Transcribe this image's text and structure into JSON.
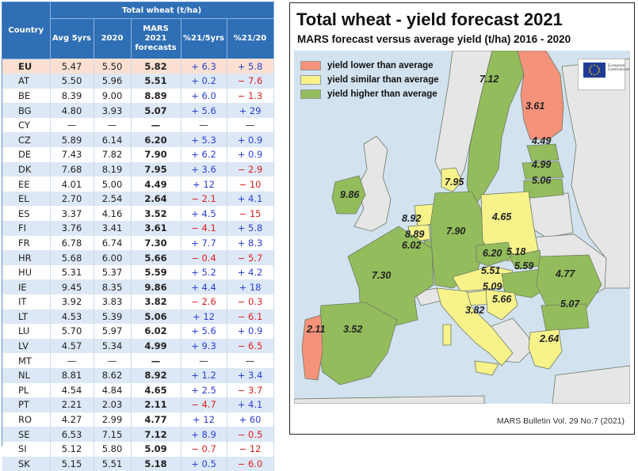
{
  "table": {
    "header_country": "Country",
    "header_group": "Total wheat (t/ha)",
    "col_avg": "Avg 5yrs",
    "col_2020": "2020",
    "col_forecast_l1": "MARS",
    "col_forecast_l2": "2021",
    "col_forecast_l3": "forecasts",
    "col_pct_avg": "%21/5yrs",
    "col_pct_2020": "%21/20",
    "rows": [
      {
        "country": "EU",
        "avg": "5.47",
        "y2020": "5.50",
        "forecast": "5.82",
        "pct_avg": "+ 6.3",
        "pct_2020": "+ 5.8"
      },
      {
        "country": "AT",
        "avg": "5.50",
        "y2020": "5.96",
        "forecast": "5.51",
        "pct_avg": "+ 0.2",
        "pct_2020": "− 7.6"
      },
      {
        "country": "BE",
        "avg": "8.39",
        "y2020": "9.00",
        "forecast": "8.89",
        "pct_avg": "+ 6.0",
        "pct_2020": "− 1.3"
      },
      {
        "country": "BG",
        "avg": "4.80",
        "y2020": "3.93",
        "forecast": "5.07",
        "pct_avg": "+ 5.6",
        "pct_2020": "+ 29"
      },
      {
        "country": "CY",
        "avg": "—",
        "y2020": "—",
        "forecast": "—",
        "pct_avg": "—",
        "pct_2020": "—"
      },
      {
        "country": "CZ",
        "avg": "5.89",
        "y2020": "6.14",
        "forecast": "6.20",
        "pct_avg": "+ 5.3",
        "pct_2020": "+ 0.9"
      },
      {
        "country": "DE",
        "avg": "7.43",
        "y2020": "7.82",
        "forecast": "7.90",
        "pct_avg": "+ 6.2",
        "pct_2020": "+ 0.9"
      },
      {
        "country": "DK",
        "avg": "7.68",
        "y2020": "8.19",
        "forecast": "7.95",
        "pct_avg": "+ 3.6",
        "pct_2020": "− 2.9"
      },
      {
        "country": "EE",
        "avg": "4.01",
        "y2020": "5.00",
        "forecast": "4.49",
        "pct_avg": "+ 12",
        "pct_2020": "− 10"
      },
      {
        "country": "EL",
        "avg": "2.70",
        "y2020": "2.54",
        "forecast": "2.64",
        "pct_avg": "− 2.1",
        "pct_2020": "+ 4.1"
      },
      {
        "country": "ES",
        "avg": "3.37",
        "y2020": "4.16",
        "forecast": "3.52",
        "pct_avg": "+ 4.5",
        "pct_2020": "− 15"
      },
      {
        "country": "FI",
        "avg": "3.76",
        "y2020": "3.41",
        "forecast": "3.61",
        "pct_avg": "− 4.1",
        "pct_2020": "+ 5.8"
      },
      {
        "country": "FR",
        "avg": "6.78",
        "y2020": "6.74",
        "forecast": "7.30",
        "pct_avg": "+ 7.7",
        "pct_2020": "+ 8.3"
      },
      {
        "country": "HR",
        "avg": "5.68",
        "y2020": "6.00",
        "forecast": "5.66",
        "pct_avg": "− 0.4",
        "pct_2020": "− 5.7"
      },
      {
        "country": "HU",
        "avg": "5.31",
        "y2020": "5.37",
        "forecast": "5.59",
        "pct_avg": "+ 5.2",
        "pct_2020": "+ 4.2"
      },
      {
        "country": "IE",
        "avg": "9.45",
        "y2020": "8.35",
        "forecast": "9.86",
        "pct_avg": "+ 4.4",
        "pct_2020": "+ 18"
      },
      {
        "country": "IT",
        "avg": "3.92",
        "y2020": "3.83",
        "forecast": "3.82",
        "pct_avg": "− 2.6",
        "pct_2020": "− 0.3"
      },
      {
        "country": "LT",
        "avg": "4.53",
        "y2020": "5.39",
        "forecast": "5.06",
        "pct_avg": "+ 12",
        "pct_2020": "− 6.1"
      },
      {
        "country": "LU",
        "avg": "5.70",
        "y2020": "5.97",
        "forecast": "6.02",
        "pct_avg": "+ 5.6",
        "pct_2020": "+ 0.9"
      },
      {
        "country": "LV",
        "avg": "4.57",
        "y2020": "5.34",
        "forecast": "4.99",
        "pct_avg": "+ 9.3",
        "pct_2020": "− 6.5"
      },
      {
        "country": "MT",
        "avg": "—",
        "y2020": "—",
        "forecast": "—",
        "pct_avg": "—",
        "pct_2020": "—"
      },
      {
        "country": "NL",
        "avg": "8.81",
        "y2020": "8.62",
        "forecast": "8.92",
        "pct_avg": "+ 1.2",
        "pct_2020": "+ 3.4"
      },
      {
        "country": "PL",
        "avg": "4.54",
        "y2020": "4.84",
        "forecast": "4.65",
        "pct_avg": "+ 2.5",
        "pct_2020": "− 3.7"
      },
      {
        "country": "PT",
        "avg": "2.21",
        "y2020": "2.03",
        "forecast": "2.11",
        "pct_avg": "− 4.7",
        "pct_2020": "+ 4.1"
      },
      {
        "country": "RO",
        "avg": "4.27",
        "y2020": "2.99",
        "forecast": "4.77",
        "pct_avg": "+ 12",
        "pct_2020": "+ 60"
      },
      {
        "country": "SE",
        "avg": "6.53",
        "y2020": "7.15",
        "forecast": "7.12",
        "pct_avg": "+ 8.9",
        "pct_2020": "− 0.5"
      },
      {
        "country": "SI",
        "avg": "5.12",
        "y2020": "5.80",
        "forecast": "5.09",
        "pct_avg": "− 0.7",
        "pct_2020": "− 12"
      },
      {
        "country": "SK",
        "avg": "5.15",
        "y2020": "5.51",
        "forecast": "5.18",
        "pct_avg": "+ 0.5",
        "pct_2020": "− 6.0"
      }
    ]
  },
  "map": {
    "title": "Total wheat - yield forecast 2021",
    "subtitle": "MARS forecast versus average yield (t/ha) 2016 - 2020",
    "legend": [
      {
        "label": "yield lower than average",
        "color": "#f5927a"
      },
      {
        "label": "yield similar than average",
        "color": "#f7f38a"
      },
      {
        "label": "yield higher than average",
        "color": "#93bd5c"
      }
    ],
    "logo_text": "European Commission",
    "source": "MARS Bulletin Vol. 29 No.7 (2021)",
    "labels": {
      "SE": "7.12",
      "FI": "3.61",
      "EE": "4.49",
      "LV": "4.99",
      "LT": "5.06",
      "DK": "7.95",
      "IE": "9.86",
      "NL": "8.92",
      "BE": "8.89",
      "LU": "6.02",
      "DE": "7.90",
      "PL": "4.65",
      "CZ": "6.20",
      "SK": "5.18",
      "AT": "5.51",
      "HU": "5.59",
      "SI": "5.09",
      "HR": "5.66",
      "RO": "4.77",
      "BG": "5.07",
      "FR": "7.30",
      "IT": "3.82",
      "ES": "3.52",
      "PT": "2.11",
      "EL": "2.64"
    }
  }
}
